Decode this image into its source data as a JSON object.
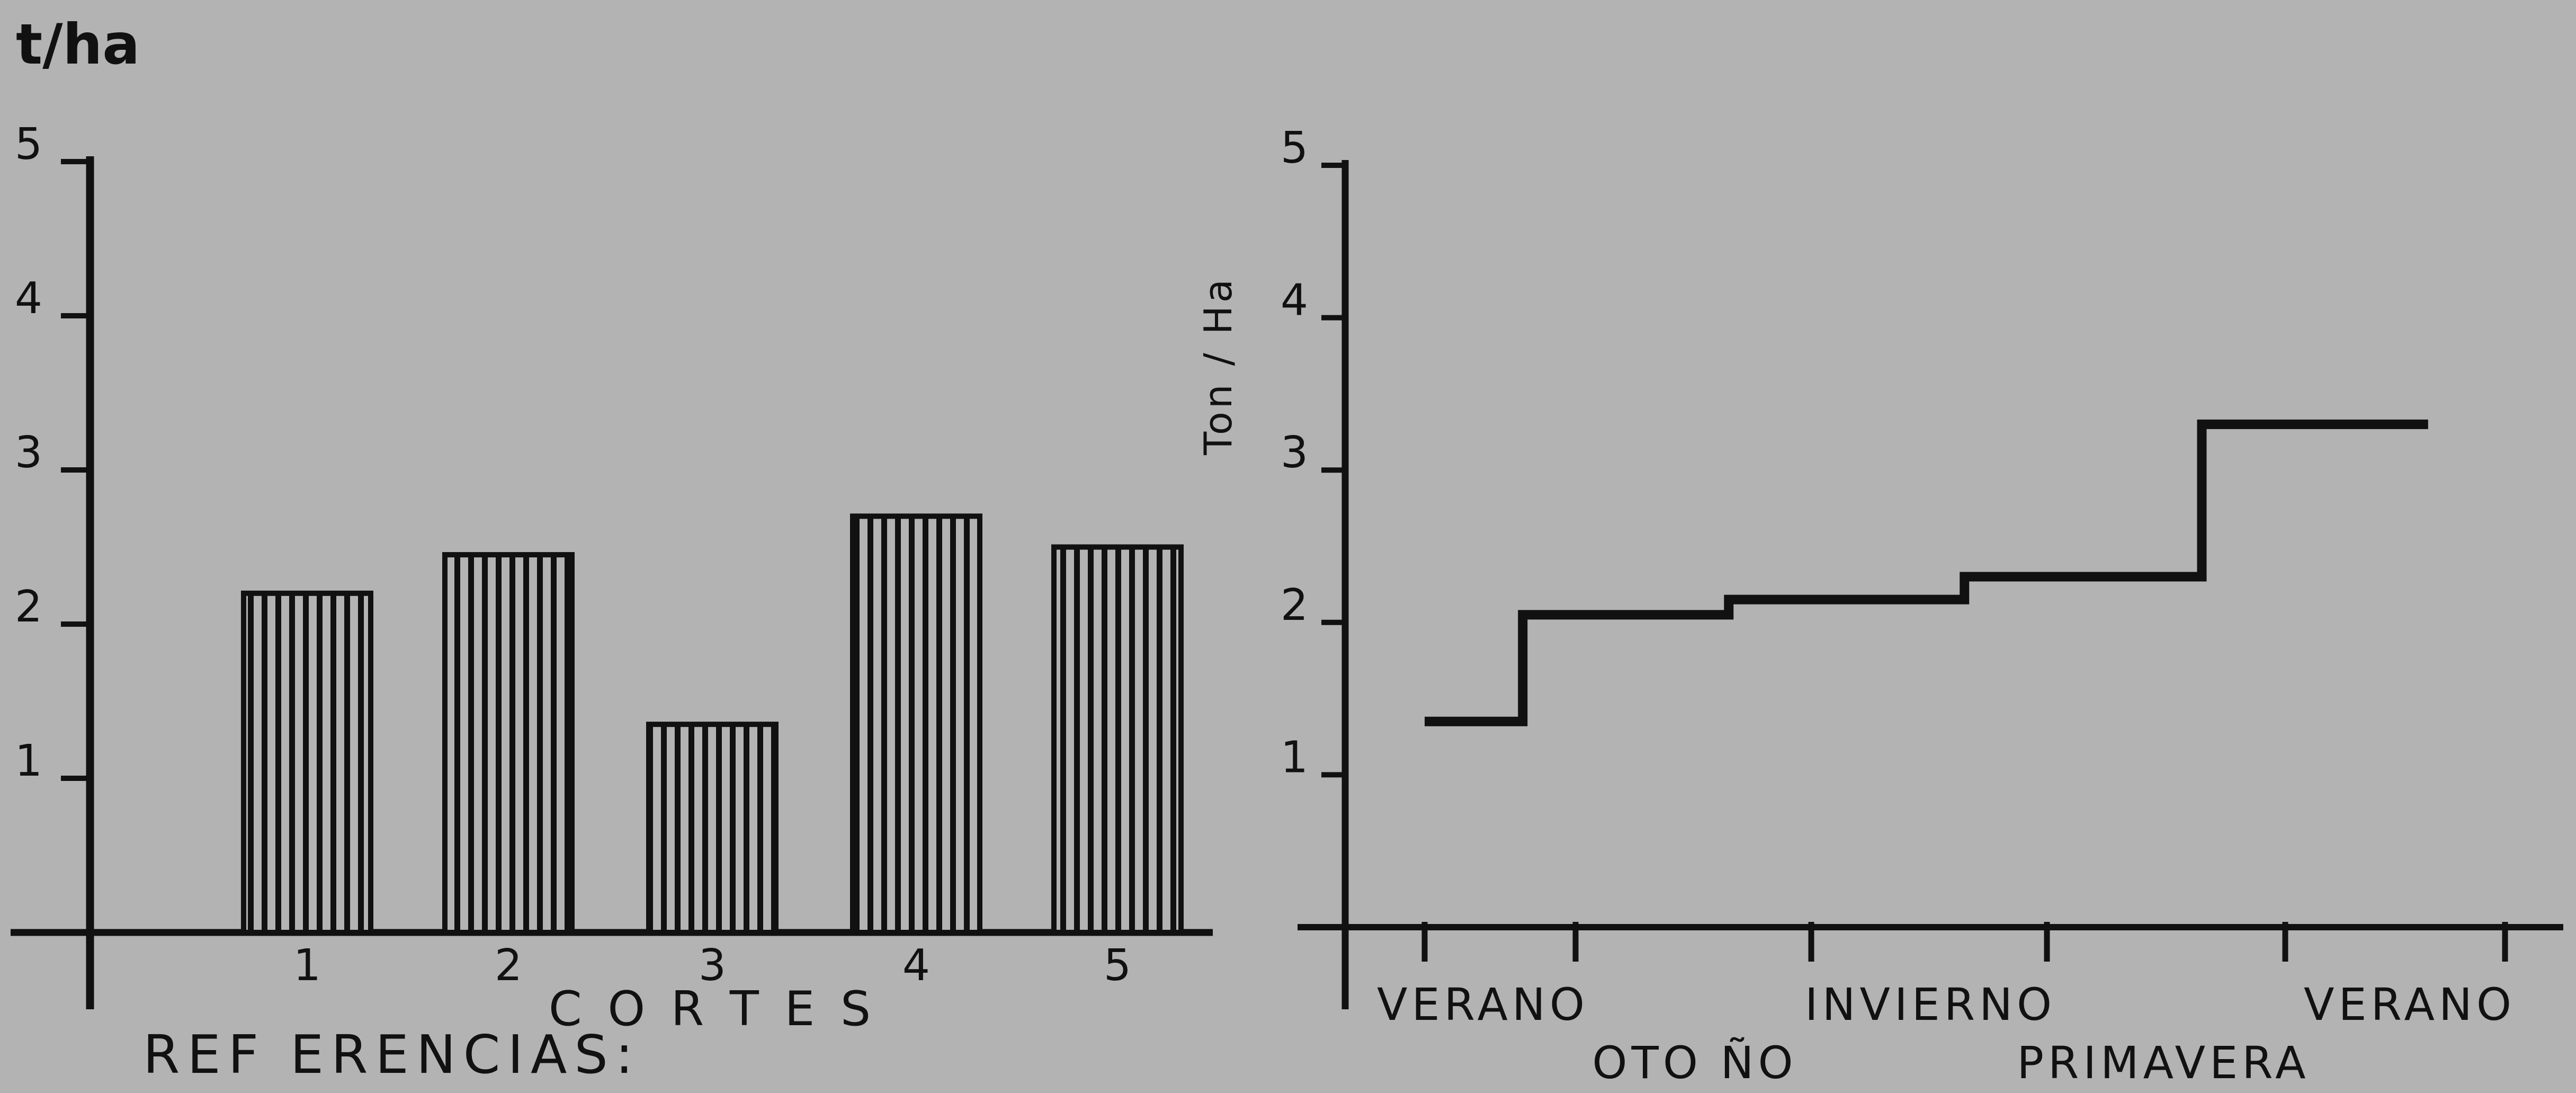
{
  "chart_data": [
    {
      "type": "bar",
      "unit_label": "t/ha",
      "xlabel": "C O R T E S",
      "categories": [
        "1",
        "2",
        "3",
        "4",
        "5"
      ],
      "values": [
        2.2,
        2.45,
        1.35,
        2.7,
        2.5
      ],
      "ylim": [
        0,
        5
      ],
      "y_ticks": [
        "1",
        "2",
        "3",
        "4",
        "5"
      ],
      "grid": false,
      "bar_fill": "vertical-hatch"
    },
    {
      "type": "line",
      "ylabel": "Ton / Ha",
      "ylim": [
        0,
        5
      ],
      "y_ticks": [
        "1",
        "2",
        "3",
        "4",
        "5"
      ],
      "x_ticks": [
        "VERANO",
        "OTOÑO",
        "INVIERNO",
        "PRIMAVERA",
        "VERANO"
      ],
      "x_tick_labels": [
        {
          "text": "VERANO",
          "row": 1
        },
        {
          "text": "OTO ÑO",
          "row": 2
        },
        {
          "text": "INVIERNO",
          "row": 1
        },
        {
          "text": "PRIMAVERA",
          "row": 2
        },
        {
          "text": "VERANO",
          "row": 1
        }
      ],
      "step_series": {
        "x": [
          0,
          0.65,
          0.65,
          1.65,
          1.65,
          2.65,
          2.65,
          3.65,
          3.65,
          4.65
        ],
        "values": [
          1.35,
          1.35,
          2.05,
          2.05,
          2.15,
          2.15,
          2.3,
          2.3,
          3.3,
          3.3
        ]
      },
      "grid": false
    }
  ],
  "footer": {
    "references_label": "REF ERENCIAS:"
  },
  "colors": {
    "background": "#b3b3b3",
    "ink": "#111111"
  }
}
